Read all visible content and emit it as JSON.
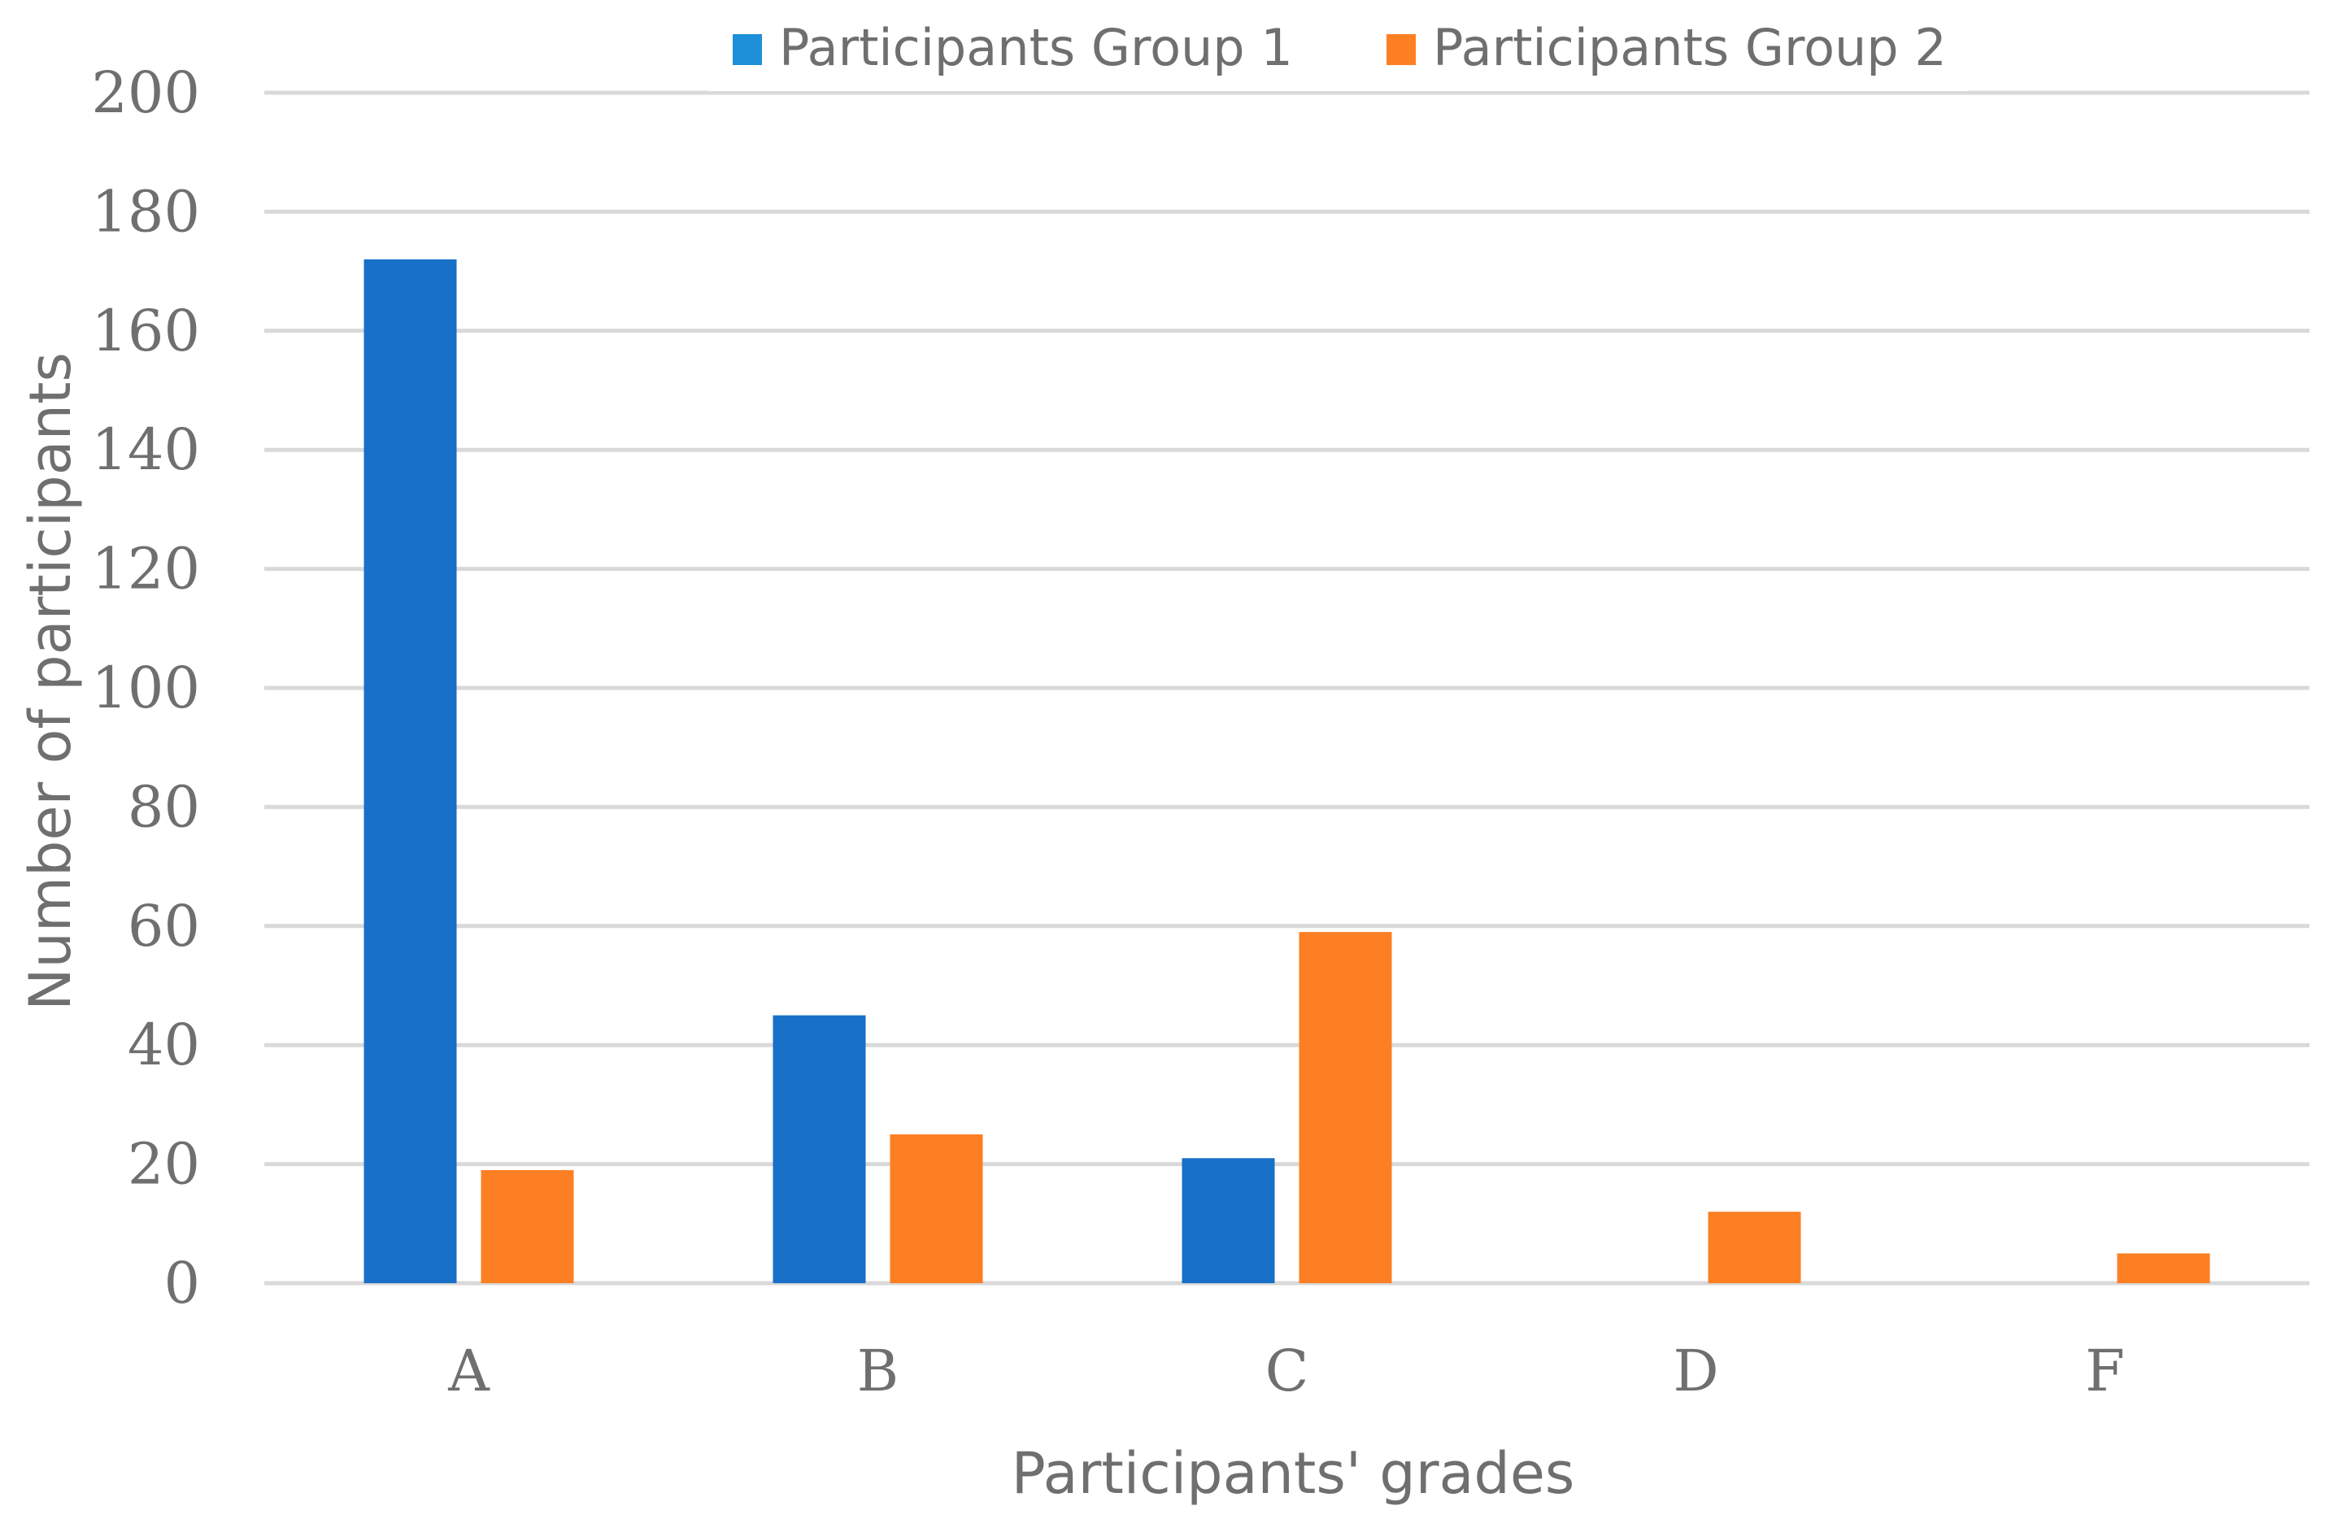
{
  "chart_data": {
    "type": "bar",
    "title": "",
    "categories": [
      "A",
      "B",
      "C",
      "D",
      "F"
    ],
    "series": [
      {
        "name": "Participants Group 1",
        "color": "#1870C8",
        "values": [
          172,
          45,
          21,
          0,
          0
        ]
      },
      {
        "name": "Participants Group 2",
        "color": "#FD7F23",
        "values": [
          19,
          25,
          59,
          12,
          5
        ]
      }
    ],
    "xlabel": "Participants' grades",
    "ylabel": "Number of participants",
    "ylim": [
      0,
      200
    ],
    "yticks": [
      0,
      20,
      40,
      60,
      80,
      100,
      120,
      140,
      160,
      180,
      200
    ],
    "grid": true,
    "legend_position": "top-center",
    "legend_markers": [
      "#1E8FD9",
      "#FD7F23"
    ]
  }
}
